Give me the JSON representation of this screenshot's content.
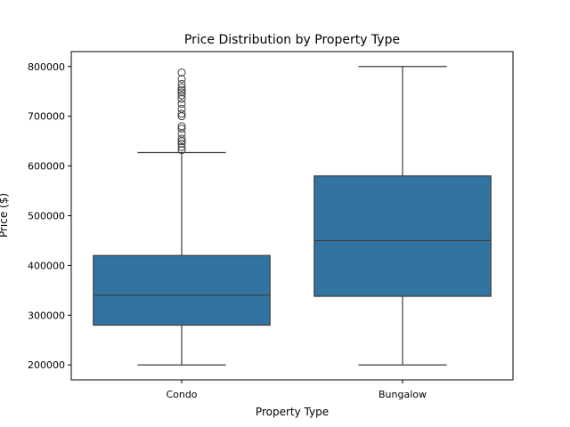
{
  "chart_data": {
    "type": "box",
    "title": "Price Distribution by Property Type",
    "xlabel": "Property Type",
    "ylabel": "Price ($)",
    "ylim": [
      170000,
      830000
    ],
    "yticks": [
      200000,
      300000,
      400000,
      500000,
      600000,
      700000,
      800000
    ],
    "categories": [
      "Condo",
      "Bungalow"
    ],
    "box_color": "#3274a1",
    "line_color": "#3d3d3d",
    "boxes": [
      {
        "category": "Condo",
        "whisker_low": 200000,
        "q1": 280000,
        "median": 340000,
        "q3": 420000,
        "whisker_high": 627000,
        "outliers": [
          632000,
          638000,
          645000,
          650000,
          655000,
          665000,
          675000,
          680000,
          700000,
          705000,
          715000,
          725000,
          735000,
          742000,
          748000,
          752000,
          758000,
          765000,
          775000,
          788000
        ]
      },
      {
        "category": "Bungalow",
        "whisker_low": 200000,
        "q1": 338000,
        "median": 450000,
        "q3": 580000,
        "whisker_high": 800000,
        "outliers": []
      }
    ],
    "grid": false,
    "legend": "none"
  }
}
